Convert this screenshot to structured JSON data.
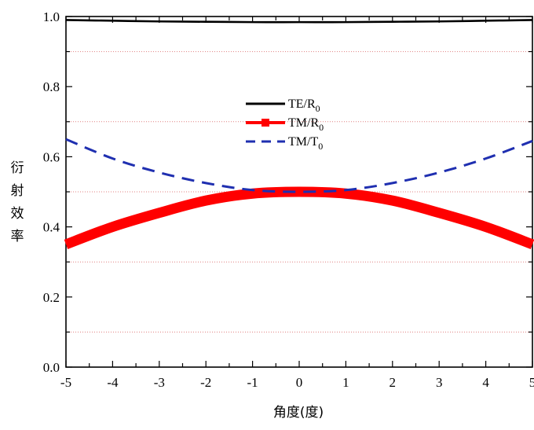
{
  "chart_data": {
    "type": "line",
    "title": "",
    "xlabel": "角度(度)",
    "ylabel": "衍射效率",
    "xlim": [
      -5,
      5
    ],
    "ylim": [
      0,
      1
    ],
    "x_ticks": [
      -5,
      -4,
      -3,
      -2,
      -1,
      0,
      1,
      2,
      3,
      4,
      5
    ],
    "y_ticks": [
      0.0,
      0.2,
      0.4,
      0.6,
      0.8,
      1.0
    ],
    "x_tick_labels": [
      "-5",
      "-4",
      "-3",
      "-2",
      "-1",
      "0",
      "1",
      "2",
      "3",
      "4",
      "5"
    ],
    "y_tick_labels": [
      "0.0",
      "0.2",
      "0.4",
      "0.6",
      "0.8",
      "1.0"
    ],
    "grid": "horizontal dotted at 0.1, 0.3, 0.5, 0.7, 0.9",
    "grid_values": [
      0.1,
      0.3,
      0.5,
      0.7,
      0.9
    ],
    "grid_color": "#e08080",
    "legend": "center",
    "series": [
      {
        "name": "TE/R",
        "name_sub": "0",
        "style": "solid",
        "color": "#000000",
        "x": [
          -5,
          -4,
          -3,
          -2,
          -1,
          0,
          1,
          2,
          3,
          4,
          5
        ],
        "y": [
          0.99,
          0.988,
          0.986,
          0.985,
          0.984,
          0.984,
          0.984,
          0.985,
          0.986,
          0.988,
          0.99
        ]
      },
      {
        "name": "TM/R",
        "name_sub": "0",
        "style": "thick-solid-square",
        "color": "#ff0000",
        "x": [
          -5,
          -4,
          -3,
          -2,
          -1,
          0,
          1,
          2,
          3,
          4,
          5
        ],
        "y": [
          0.35,
          0.4,
          0.44,
          0.475,
          0.495,
          0.5,
          0.495,
          0.475,
          0.44,
          0.4,
          0.35
        ]
      },
      {
        "name": "TM/T",
        "name_sub": "0",
        "style": "dashed",
        "color": "#1f2fb0",
        "x": [
          -5,
          -4,
          -3,
          -2,
          -1,
          0,
          1,
          2,
          3,
          4,
          5
        ],
        "y": [
          0.65,
          0.595,
          0.555,
          0.525,
          0.505,
          0.5,
          0.505,
          0.525,
          0.555,
          0.595,
          0.645
        ]
      }
    ]
  }
}
